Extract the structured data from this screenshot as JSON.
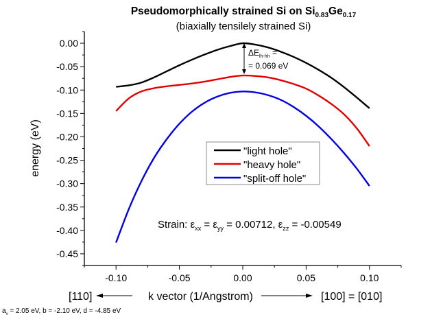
{
  "chart_data": {
    "type": "line",
    "title": {
      "main": "Pseudomorphically strained Si on Si",
      "sub1": "0.83",
      "mid": "Ge",
      "sub2": "0.17"
    },
    "subtitle": "(biaxially tensilely strained Si)",
    "xlabel": "k vector (1/Angstrom)",
    "xlabel_left": "[110]",
    "xlabel_right": "[100] = [010]",
    "ylabel": "energy (eV)",
    "xlim": [
      -0.125,
      0.125
    ],
    "ylim": [
      -0.475,
      0.025
    ],
    "xticks": [
      "-0.10",
      "-0.05",
      "0.00",
      "0.05",
      "0.10"
    ],
    "yticks": [
      "0.00",
      "-0.05",
      "-0.10",
      "-0.15",
      "-0.20",
      "-0.25",
      "-0.30",
      "-0.35",
      "-0.40",
      "-0.45"
    ],
    "grid": false,
    "legend_placement": "center-right",
    "x": [
      -0.1,
      -0.09,
      -0.08,
      -0.07,
      -0.06,
      -0.05,
      -0.04,
      -0.03,
      -0.02,
      -0.01,
      0.0,
      0.01,
      0.02,
      0.03,
      0.04,
      0.05,
      0.06,
      0.07,
      0.08,
      0.09,
      0.1
    ],
    "series": [
      {
        "name": "\"light hole\"",
        "color": "#000000",
        "values": [
          -0.093,
          -0.09,
          -0.084,
          -0.073,
          -0.06,
          -0.047,
          -0.035,
          -0.024,
          -0.014,
          -0.006,
          0.0,
          -0.003,
          -0.009,
          -0.018,
          -0.029,
          -0.042,
          -0.057,
          -0.074,
          -0.094,
          -0.116,
          -0.139
        ]
      },
      {
        "name": "\"heavy hole\"",
        "color": "#e00000",
        "values": [
          -0.145,
          -0.118,
          -0.103,
          -0.096,
          -0.092,
          -0.089,
          -0.086,
          -0.082,
          -0.077,
          -0.072,
          -0.069,
          -0.07,
          -0.073,
          -0.079,
          -0.087,
          -0.097,
          -0.112,
          -0.13,
          -0.152,
          -0.182,
          -0.22
        ]
      },
      {
        "name": "\"split-off hole\"",
        "color": "#0000e0",
        "values": [
          -0.426,
          -0.355,
          -0.295,
          -0.245,
          -0.205,
          -0.172,
          -0.146,
          -0.127,
          -0.114,
          -0.106,
          -0.103,
          -0.105,
          -0.111,
          -0.121,
          -0.136,
          -0.155,
          -0.178,
          -0.205,
          -0.235,
          -0.268,
          -0.305
        ]
      }
    ],
    "annotation": {
      "line1": "ΔE",
      "line1_sub": "lh-hh",
      "line1_tail": " =",
      "line2": "= 0.069 eV",
      "value_ev": 0.069
    },
    "strain_text": {
      "prefix": "Strain: ε",
      "s1": "xx",
      "p2": " = ε",
      "s2": "yy",
      "p3": " = 0.00712, ε",
      "s3": "zz",
      "p4": " = -0.00549"
    },
    "parameters": {
      "a": "a",
      "a_sub": "v",
      "rest": " = 2.05 eV, b = -2.10 eV, d = -4.85 eV"
    }
  }
}
